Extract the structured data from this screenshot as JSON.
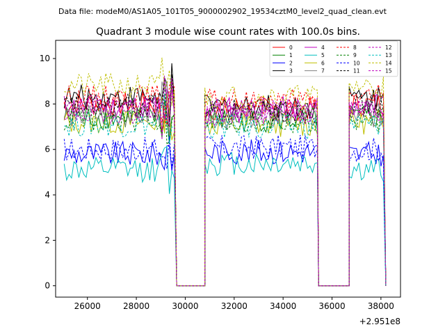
{
  "chart_data": {
    "type": "line",
    "figure_header": "Data file: modeM0/AS1A05_101T05_9000002902_19534cztM0_level2_quad_clean.evt",
    "title": "Quadrant 3 module wise count rates with 100.0s bins.",
    "xlabel": "",
    "ylabel": "",
    "x_offset_label": "+2.951e8",
    "xlim": [
      24700,
      38800
    ],
    "ylim": [
      -0.5,
      10.8
    ],
    "x_ticks": [
      26000,
      28000,
      30000,
      32000,
      34000,
      36000,
      38000
    ],
    "x_tick_labels": [
      "26000",
      "28000",
      "30000",
      "32000",
      "34000",
      "36000",
      "38000"
    ],
    "y_ticks": [
      0,
      2,
      4,
      6,
      8,
      10
    ],
    "y_tick_labels": [
      "0",
      "2",
      "4",
      "6",
      "8",
      "10"
    ],
    "gti_segments": [
      [
        25050,
        29600
      ],
      [
        30800,
        35400
      ],
      [
        36700,
        38150
      ]
    ],
    "bin_seconds": 100,
    "legend_position": "top-right",
    "legend_columns": 4,
    "series": [
      {
        "name": "0",
        "color": "#ff0000",
        "dash": "solid",
        "level": 8.0,
        "level_low": 7.8
      },
      {
        "name": "1",
        "color": "#008000",
        "dash": "solid",
        "level": 7.4,
        "level_low": 7.3
      },
      {
        "name": "2",
        "color": "#0000ff",
        "dash": "solid",
        "level": 5.8,
        "level_low": 5.9
      },
      {
        "name": "3",
        "color": "#000000",
        "dash": "solid",
        "level": 8.3,
        "level_low": 7.9
      },
      {
        "name": "4",
        "color": "#bf00bf",
        "dash": "solid",
        "level": 7.9,
        "level_low": 7.8
      },
      {
        "name": "5",
        "color": "#00bfbf",
        "dash": "solid",
        "level": 5.1,
        "level_low": 5.4
      },
      {
        "name": "6",
        "color": "#bfbf00",
        "dash": "solid",
        "level": 7.2,
        "level_low": 7.1
      },
      {
        "name": "7",
        "color": "#808080",
        "dash": "solid",
        "level": 7.5,
        "level_low": 7.4
      },
      {
        "name": "8",
        "color": "#ff0000",
        "dash": "dashed",
        "level": 8.3,
        "level_low": 8.1
      },
      {
        "name": "9",
        "color": "#008000",
        "dash": "dashed",
        "level": 7.3,
        "level_low": 7.2
      },
      {
        "name": "10",
        "color": "#0000ff",
        "dash": "dashed",
        "level": 6.0,
        "level_low": 6.1
      },
      {
        "name": "11",
        "color": "#000000",
        "dash": "dashed",
        "level": 7.9,
        "level_low": 7.7
      },
      {
        "name": "12",
        "color": "#bf00bf",
        "dash": "dashed",
        "level": 7.7,
        "level_low": 7.6
      },
      {
        "name": "13",
        "color": "#00bfbf",
        "dash": "dashed",
        "level": 7.1,
        "level_low": 7.0
      },
      {
        "name": "14",
        "color": "#bfbf00",
        "dash": "dashed",
        "level": 8.8,
        "level_low": 8.3
      },
      {
        "name": "15",
        "color": "#bf00bf",
        "dash": "dashed",
        "level": 7.8,
        "level_low": 7.6
      }
    ]
  }
}
